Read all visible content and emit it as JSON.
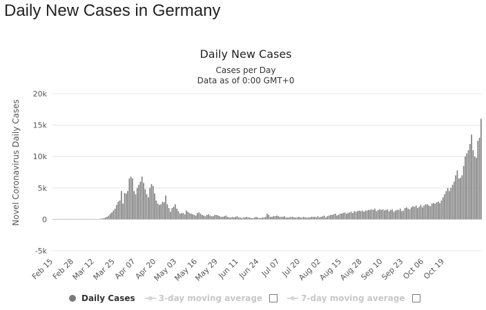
{
  "page": {
    "title": "Daily New Cases in Germany"
  },
  "chart_data": {
    "type": "bar",
    "title": "Daily New Cases",
    "subtitle": "Cases per Day",
    "subtitle2": "Data as of 0:00 GMT+0",
    "ylabel": "Novel Coronavirus Daily Cases",
    "xlabel": "",
    "ylim": [
      -5000,
      20000
    ],
    "yticks": [
      -5000,
      0,
      5000,
      10000,
      15000,
      20000
    ],
    "ytick_labels": [
      "-5k",
      "0",
      "5k",
      "10k",
      "15k",
      "20k"
    ],
    "x_start_date": "Feb 15",
    "xtick_labels": [
      "Feb 15",
      "Feb 28",
      "Mar 12",
      "Mar 25",
      "Apr 07",
      "Apr 20",
      "May 03",
      "May 16",
      "May 29",
      "Jun 11",
      "Jun 24",
      "Jul 07",
      "Jul 20",
      "Aug 02",
      "Aug 15",
      "Aug 28",
      "Sep 10",
      "Sep 23",
      "Oct 06",
      "Oct 19"
    ],
    "grid": true,
    "bar_color": "#7a7a7a",
    "series": [
      {
        "name": "Daily Cases",
        "values": [
          0,
          0,
          0,
          0,
          0,
          0,
          0,
          0,
          0,
          0,
          0,
          0,
          0,
          0,
          0,
          0,
          0,
          0,
          0,
          0,
          0,
          0,
          0,
          0,
          0,
          0,
          0,
          0,
          0,
          0,
          100,
          120,
          200,
          300,
          400,
          600,
          900,
          1100,
          1400,
          1700,
          2300,
          2800,
          3000,
          4500,
          2500,
          4200,
          4100,
          4500,
          6500,
          6800,
          6500,
          4500,
          4000,
          5000,
          5500,
          6000,
          6800,
          5800,
          4800,
          4000,
          3500,
          5000,
          5600,
          5300,
          4100,
          3000,
          2500,
          2300,
          2400,
          2800,
          2700,
          3800,
          2400,
          1800,
          1200,
          1800,
          2000,
          2400,
          1700,
          1300,
          900,
          1000,
          1000,
          800,
          1400,
          1200,
          1000,
          900,
          800,
          700,
          600,
          1000,
          1100,
          900,
          700,
          600,
          500,
          700,
          800,
          600,
          500,
          500,
          700,
          700,
          600,
          500,
          400,
          400,
          500,
          600,
          400,
          300,
          300,
          400,
          300,
          400,
          500,
          300,
          300,
          200,
          300,
          300,
          400,
          300,
          300,
          200,
          200,
          300,
          400,
          300,
          200,
          200,
          300,
          300,
          400,
          900,
          700,
          400,
          400,
          500,
          500,
          600,
          500,
          400,
          400,
          400,
          500,
          300,
          300,
          300,
          400,
          400,
          300,
          300,
          300,
          400,
          300,
          300,
          400,
          300,
          300,
          300,
          300,
          400,
          400,
          400,
          300,
          500,
          300,
          400,
          500,
          600,
          300,
          500,
          600,
          700,
          700,
          800,
          900,
          600,
          700,
          900,
          900,
          1000,
          1100,
          900,
          1000,
          1100,
          1200,
          1000,
          1300,
          1200,
          1300,
          1400,
          1300,
          1400,
          1200,
          1400,
          1400,
          1500,
          1500,
          1600,
          1500,
          1700,
          1300,
          1500,
          1600,
          1500,
          1600,
          1400,
          1500,
          1600,
          1300,
          1500,
          1600,
          1200,
          1400,
          1500,
          1500,
          1700,
          1300,
          1400,
          1800,
          1900,
          1700,
          1600,
          1900,
          2100,
          2000,
          2200,
          1800,
          2000,
          2300,
          1900,
          2200,
          2400,
          2400,
          2200,
          2100,
          2500,
          2600,
          2500,
          2700,
          2800,
          2600,
          3000,
          3500,
          4000,
          4500,
          5000,
          4500,
          5000,
          5500,
          6000,
          7000,
          7800,
          6500,
          6600,
          7000,
          8500,
          10000,
          10500,
          11000,
          12000,
          13500,
          11000,
          10000,
          9800,
          12500,
          13000,
          16000
        ]
      }
    ],
    "legend": [
      {
        "label": "Daily Cases",
        "enabled": true
      },
      {
        "label": "3-day moving average",
        "enabled": false
      },
      {
        "label": "7-day moving average",
        "enabled": false
      }
    ]
  }
}
